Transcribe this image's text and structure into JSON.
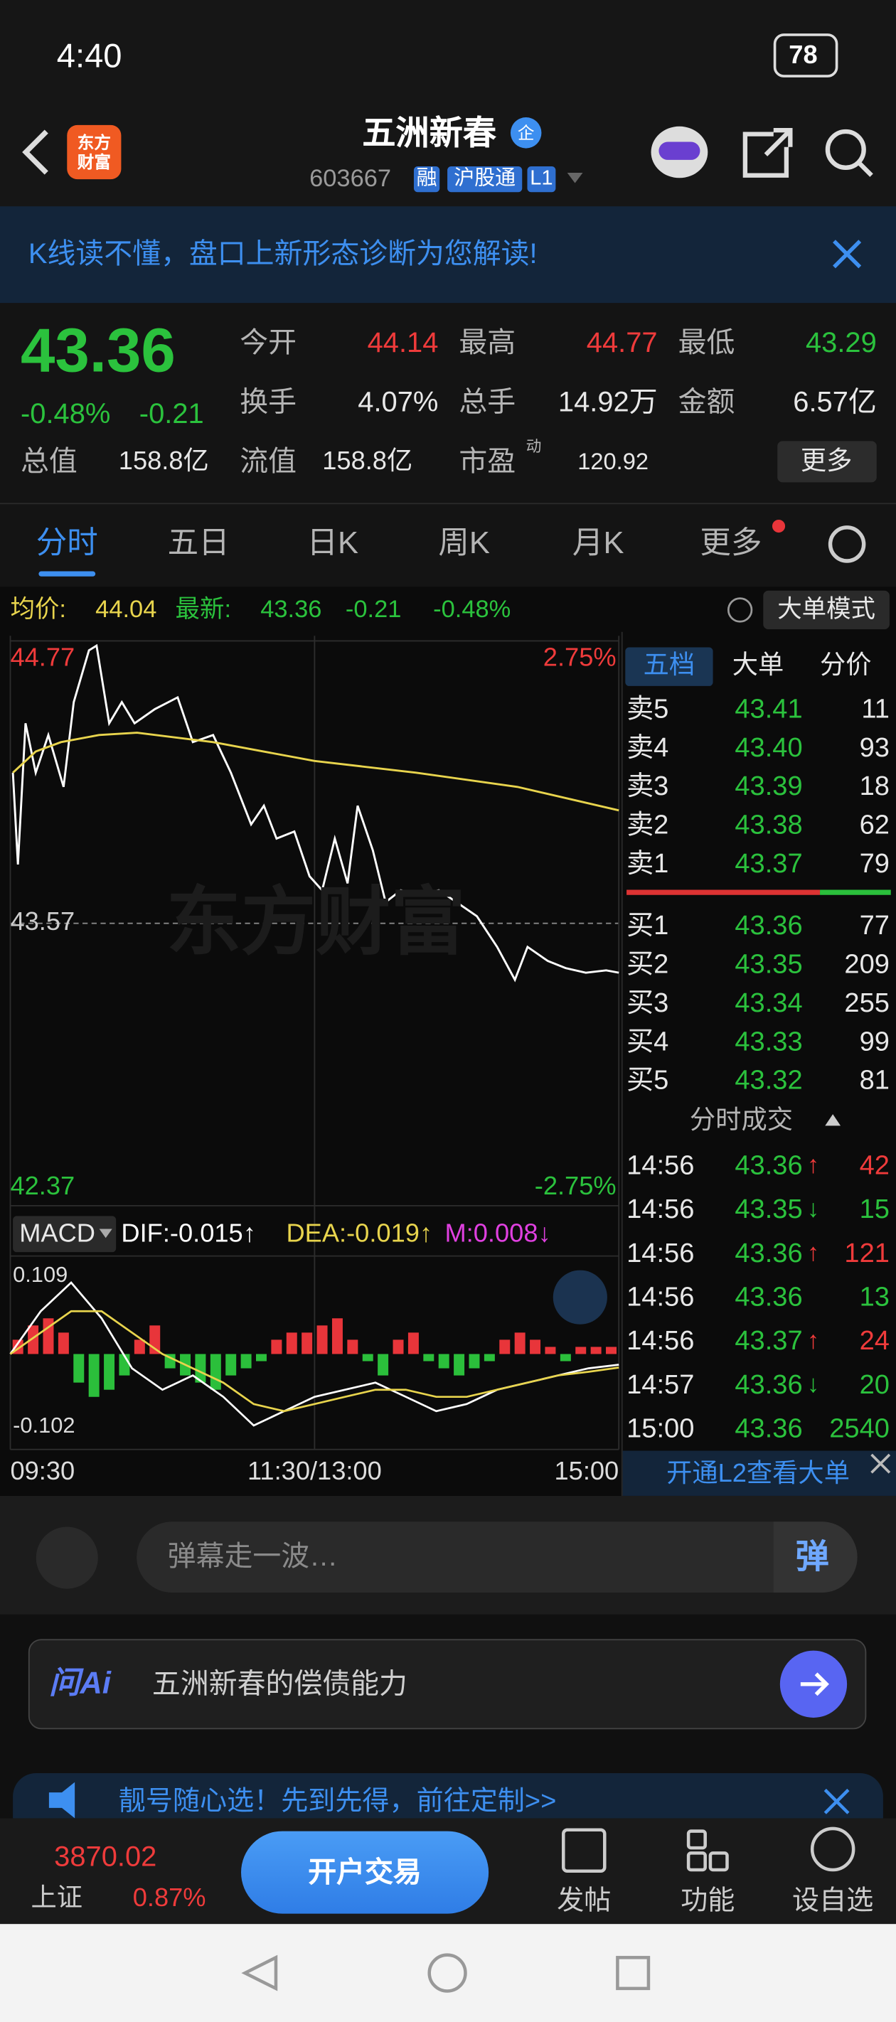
{
  "status_bar": {
    "time": "4:40",
    "battery": "78"
  },
  "header": {
    "logo": "东方财富",
    "title": "五洲新春",
    "badge": "企",
    "code": "603667",
    "tags": [
      "融",
      "沪股通",
      "L1"
    ]
  },
  "banner": {
    "text": "K线读不懂，盘口上新形态诊断为您解读!"
  },
  "quote": {
    "price": "43.36",
    "change_pct": "-0.48%",
    "change": "-0.21",
    "fields": [
      {
        "label": "今开",
        "value": "44.14"
      },
      {
        "label": "最高",
        "value": "44.77"
      },
      {
        "label": "最低",
        "value": "43.29"
      },
      {
        "label": "换手",
        "value": "4.07%"
      },
      {
        "label": "总手",
        "value": "14.92万"
      },
      {
        "label": "金额",
        "value": "6.57亿"
      },
      {
        "label": "总值",
        "value": "158.8亿"
      },
      {
        "label": "流值",
        "value": "158.8亿"
      },
      {
        "label": "市盈",
        "superscript": "动",
        "value": "120.92"
      }
    ],
    "more": "更多"
  },
  "tabs": [
    "分时",
    "五日",
    "日K",
    "周K",
    "月K",
    "更多"
  ],
  "info_line": {
    "avg_label": "均价:",
    "avg": "44.04",
    "latest_label": "最新:",
    "latest": "43.36",
    "change": "-0.21",
    "change_pct": "-0.48%",
    "mode": "大单模式"
  },
  "watermark": "东方财富",
  "chart_data": [
    {
      "type": "line",
      "xlim": [
        0,
        240
      ],
      "xticks": [
        {
          "value": 0,
          "label": "09:30"
        },
        {
          "value": 120,
          "label": "11:30/13:00"
        },
        {
          "value": 240,
          "label": "15:00"
        }
      ],
      "ylim": [
        42.37,
        44.77
      ],
      "yticks": [
        44.77,
        43.57,
        42.37
      ],
      "y2lim": [
        -2.75,
        2.75
      ],
      "y2ticks": [
        {
          "value": 2.75,
          "label": "2.75%"
        },
        {
          "value": -2.75,
          "label": "-2.75%"
        }
      ],
      "grid": true,
      "series": [
        {
          "color": "#ffffff",
          "x": [
            1,
            3,
            6,
            10,
            15,
            21,
            25,
            31,
            34,
            39,
            44,
            49,
            57,
            66,
            72,
            80,
            87,
            95,
            100,
            105,
            112,
            118,
            123,
            128,
            133,
            137,
            143,
            148,
            154,
            161,
            169,
            176,
            184,
            192,
            199,
            204,
            212,
            219,
            227,
            235,
            240
          ],
          "values": [
            44.21,
            43.82,
            44.42,
            44.21,
            44.37,
            44.15,
            44.51,
            44.73,
            44.75,
            44.42,
            44.51,
            44.42,
            44.48,
            44.53,
            44.34,
            44.37,
            44.21,
            43.99,
            44.07,
            43.93,
            43.96,
            43.77,
            43.71,
            43.93,
            43.74,
            44.07,
            43.88,
            43.66,
            43.71,
            43.69,
            43.71,
            43.66,
            43.6,
            43.47,
            43.33,
            43.47,
            43.41,
            43.38,
            43.36,
            43.37,
            43.36
          ]
        },
        {
          "color": "#e8d44d",
          "x": [
            1,
            10,
            20,
            35,
            50,
            80,
            120,
            160,
            200,
            240
          ],
          "values": [
            44.21,
            44.3,
            44.34,
            44.37,
            44.38,
            44.34,
            44.26,
            44.21,
            44.15,
            44.05
          ]
        }
      ]
    },
    {
      "type": "macd",
      "title": "MACD",
      "ylim": [
        -0.13,
        0.13
      ],
      "yticks": [
        0.109,
        -0.102
      ],
      "grid": false,
      "bars": {
        "name": "M:0.008↓",
        "color": "#e040e0",
        "up_color": "#e8353a",
        "down_color": "#2bbf3b",
        "x": [
          3,
          9,
          15,
          21,
          27,
          33,
          39,
          45,
          51,
          57,
          63,
          69,
          75,
          81,
          87,
          93,
          99,
          105,
          111,
          117,
          123,
          129,
          135,
          141,
          147,
          153,
          159,
          165,
          171,
          177,
          183,
          189,
          195,
          201,
          207,
          213,
          219,
          225,
          231,
          237
        ],
        "values": [
          0.02,
          0.04,
          0.05,
          0.03,
          -0.04,
          -0.06,
          -0.05,
          -0.03,
          0.02,
          0.04,
          -0.02,
          -0.03,
          -0.04,
          -0.05,
          -0.03,
          -0.02,
          -0.01,
          0.02,
          0.03,
          0.03,
          0.04,
          0.05,
          0.02,
          -0.01,
          -0.03,
          0.02,
          0.03,
          -0.01,
          -0.02,
          -0.03,
          -0.02,
          -0.01,
          0.02,
          0.03,
          0.02,
          0.01,
          -0.01,
          0.01,
          0.01,
          0.01
        ]
      },
      "series": [
        {
          "name": "DIF:-0.015↑",
          "color": "#ffffff",
          "x": [
            0,
            12,
            24,
            36,
            48,
            60,
            72,
            84,
            96,
            108,
            120,
            132,
            144,
            156,
            168,
            180,
            192,
            204,
            216,
            228,
            240
          ],
          "values": [
            0,
            0.06,
            0.1,
            0.05,
            -0.02,
            -0.05,
            -0.03,
            -0.06,
            -0.1,
            -0.08,
            -0.06,
            -0.05,
            -0.04,
            -0.06,
            -0.08,
            -0.07,
            -0.05,
            -0.04,
            -0.03,
            -0.02,
            -0.015
          ]
        },
        {
          "name": "DEA:-0.019↑",
          "color": "#e8d44d",
          "x": [
            0,
            12,
            24,
            36,
            48,
            60,
            72,
            84,
            96,
            108,
            120,
            132,
            144,
            156,
            168,
            180,
            192,
            204,
            216,
            228,
            240
          ],
          "values": [
            0,
            0.03,
            0.06,
            0.06,
            0.03,
            0,
            -0.02,
            -0.04,
            -0.07,
            -0.08,
            -0.07,
            -0.06,
            -0.05,
            -0.05,
            -0.06,
            -0.06,
            -0.05,
            -0.04,
            -0.03,
            -0.025,
            -0.019
          ]
        }
      ]
    }
  ],
  "order_book": {
    "tabs": [
      "五档",
      "大单",
      "分价"
    ],
    "asks": [
      {
        "label": "卖5",
        "price": "43.41",
        "volume": "11"
      },
      {
        "label": "卖4",
        "price": "43.40",
        "volume": "93"
      },
      {
        "label": "卖3",
        "price": "43.39",
        "volume": "18"
      },
      {
        "label": "卖2",
        "price": "43.38",
        "volume": "62"
      },
      {
        "label": "卖1",
        "price": "43.37",
        "volume": "79"
      }
    ],
    "bids": [
      {
        "label": "买1",
        "price": "43.36",
        "volume": "77"
      },
      {
        "label": "买2",
        "price": "43.35",
        "volume": "209"
      },
      {
        "label": "买3",
        "price": "43.34",
        "volume": "255"
      },
      {
        "label": "买4",
        "price": "43.33",
        "volume": "99"
      },
      {
        "label": "买5",
        "price": "43.32",
        "volume": "81"
      }
    ]
  },
  "trades": {
    "title": "分时成交",
    "rows": [
      {
        "time": "14:56",
        "price": "43.36",
        "arrow": "↑",
        "volume": "42"
      },
      {
        "time": "14:56",
        "price": "43.35",
        "arrow": "↓",
        "volume": "15"
      },
      {
        "time": "14:56",
        "price": "43.36",
        "arrow": "↑",
        "volume": "121"
      },
      {
        "time": "14:56",
        "price": "43.36",
        "volume": "13"
      },
      {
        "time": "14:56",
        "price": "43.37",
        "arrow": "↑",
        "volume": "24"
      },
      {
        "time": "14:57",
        "price": "43.36",
        "arrow": "↓",
        "volume": "20"
      },
      {
        "time": "15:00",
        "price": "43.36",
        "volume": "2540"
      }
    ],
    "l2_link": "开通L2查看大单"
  },
  "danmaku": {
    "placeholder": "弹幕走一波…",
    "button": "弹"
  },
  "ai": {
    "logo": "问Ai",
    "prompt": "五洲新春的偿债能力"
  },
  "ad": {
    "text": "靓号随心选！先到先得，前往定制>>"
  },
  "bottom_bar": {
    "index_value": "3870.02",
    "index_name": "上证",
    "index_change": "0.87%",
    "trade_button": "开户交易",
    "items": [
      "发帖",
      "功能",
      "设自选"
    ]
  }
}
